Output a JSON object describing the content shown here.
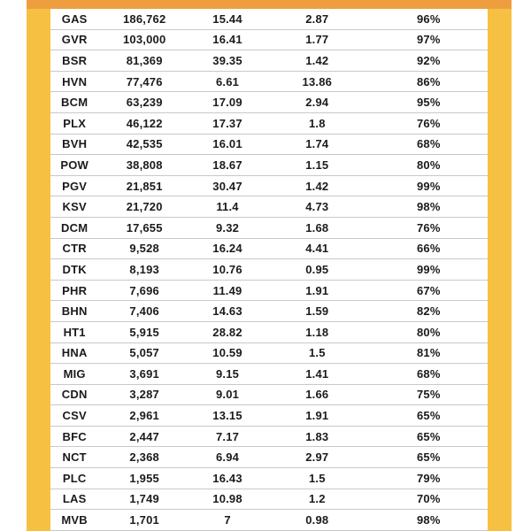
{
  "chart_data": {
    "type": "table",
    "rows": [
      [
        "GAS",
        "186,762",
        "15.44",
        "2.87",
        "96%"
      ],
      [
        "GVR",
        "103,000",
        "16.41",
        "1.77",
        "97%"
      ],
      [
        "BSR",
        "81,369",
        "39.35",
        "1.42",
        "92%"
      ],
      [
        "HVN",
        "77,476",
        "6.61",
        "13.86",
        "86%"
      ],
      [
        "BCM",
        "63,239",
        "17.09",
        "2.94",
        "95%"
      ],
      [
        "PLX",
        "46,122",
        "17.37",
        "1.8",
        "76%"
      ],
      [
        "BVH",
        "42,535",
        "16.01",
        "1.74",
        "68%"
      ],
      [
        "POW",
        "38,808",
        "18.67",
        "1.15",
        "80%"
      ],
      [
        "PGV",
        "21,851",
        "30.47",
        "1.42",
        "99%"
      ],
      [
        "KSV",
        "21,720",
        "11.4",
        "4.73",
        "98%"
      ],
      [
        "DCM",
        "17,655",
        "9.32",
        "1.68",
        "76%"
      ],
      [
        "CTR",
        "9,528",
        "16.24",
        "4.41",
        "66%"
      ],
      [
        "DTK",
        "8,193",
        "10.76",
        "0.95",
        "99%"
      ],
      [
        "PHR",
        "7,696",
        "11.49",
        "1.91",
        "67%"
      ],
      [
        "BHN",
        "7,406",
        "14.63",
        "1.59",
        "82%"
      ],
      [
        "HT1",
        "5,915",
        "28.82",
        "1.18",
        "80%"
      ],
      [
        "HNA",
        "5,057",
        "10.59",
        "1.5",
        "81%"
      ],
      [
        "MIG",
        "3,691",
        "9.15",
        "1.41",
        "68%"
      ],
      [
        "CDN",
        "3,287",
        "9.01",
        "1.66",
        "75%"
      ],
      [
        "CSV",
        "2,961",
        "13.15",
        "1.91",
        "65%"
      ],
      [
        "BFC",
        "2,447",
        "7.17",
        "1.83",
        "65%"
      ],
      [
        "NCT",
        "2,368",
        "6.94",
        "2.97",
        "65%"
      ],
      [
        "PLC",
        "1,955",
        "16.43",
        "1.5",
        "79%"
      ],
      [
        "LAS",
        "1,749",
        "10.98",
        "1.2",
        "70%"
      ],
      [
        "MVB",
        "1,701",
        "7",
        "0.98",
        "98%"
      ]
    ]
  },
  "colors": {
    "strip_yellow": "#F6C142",
    "header_orange": "#EE9E3E",
    "row_border": "#C9C9C9",
    "text": "#1B1B1B"
  }
}
